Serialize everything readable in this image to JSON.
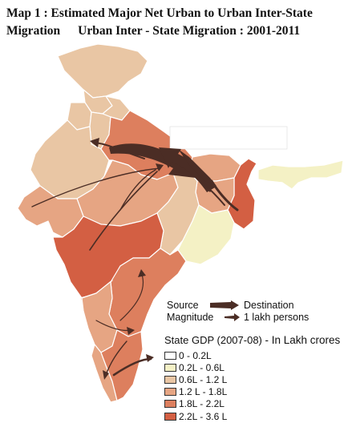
{
  "title_line1": "Map 1 : Estimated Major Net Urban to Urban Inter-State",
  "title_line2a": "Migration",
  "title_line2b": "Urban Inter - State Migration : 2001-2011",
  "arrow_legend": {
    "source": "Source",
    "destination": "Destination",
    "magnitude": "Magnitude",
    "magnitude_value": "1 lakh persons"
  },
  "gdp_legend": {
    "title": "State GDP (2007-08)",
    "unit": "- In Lakh crores",
    "classes": [
      {
        "label": "0 - 0.2L",
        "color": "#ffffff"
      },
      {
        "label": "0.2L - 0.6L",
        "color": "#f4f1c5"
      },
      {
        "label": "0.6L - 1.2 L",
        "color": "#e9c6a4"
      },
      {
        "label": "1.2 L - 1.8L",
        "color": "#e6a583"
      },
      {
        "label": "1.8L - 2.2L",
        "color": "#dd7f5e"
      },
      {
        "label": "2.2L - 3.6 L",
        "color": "#d35f43"
      }
    ]
  },
  "colors": {
    "outline": "#ffffff",
    "arrow": "#4b2d25"
  }
}
